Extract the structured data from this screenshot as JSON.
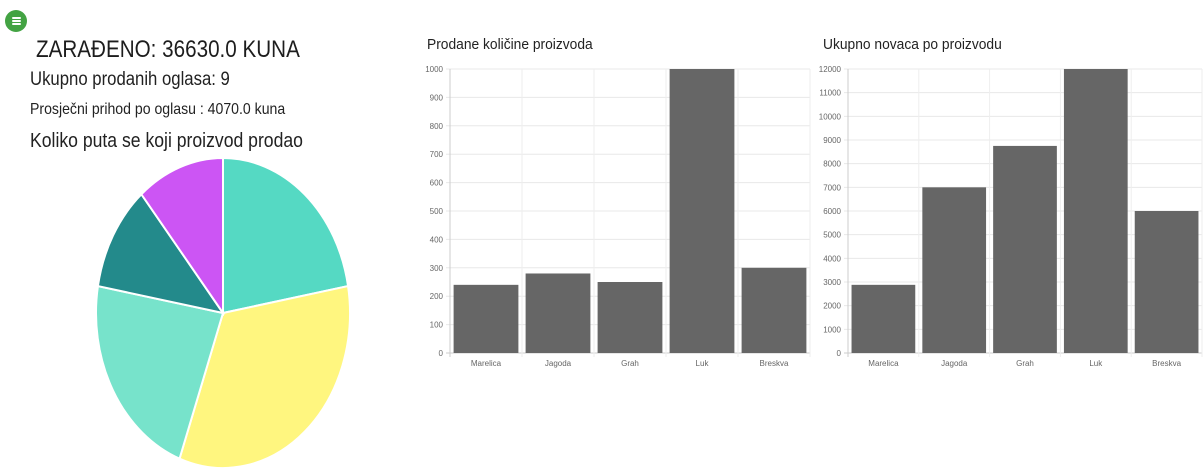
{
  "menu": {
    "icon": "hamburger-icon",
    "color": "#43a343"
  },
  "stats": {
    "earned": "ZARAĐENO: 36630.0 KUNA",
    "total_ads": "Ukupno prodanih oglasa: 9",
    "avg_income": "Prosječni prihod po oglasu : 4070.0 kuna",
    "pie_title": "Koliko puta se koji proizvod prodao"
  },
  "chart_data": [
    {
      "type": "pie",
      "title": "Koliko puta se koji proizvod prodao",
      "values": [
        2,
        3,
        2,
        1,
        1
      ],
      "colors": [
        "#55d9c3",
        "#fff67f",
        "#77e3cb",
        "#238a8b",
        "#cc55f4"
      ]
    },
    {
      "type": "bar",
      "title": "Prodane količine proizvoda",
      "categories": [
        "Marelica",
        "Jagoda",
        "Grah",
        "Luk",
        "Breskva"
      ],
      "values": [
        240,
        280,
        250,
        1000,
        300
      ],
      "ylim": [
        0,
        1000
      ],
      "yticks": [
        0,
        100,
        200,
        300,
        400,
        500,
        600,
        700,
        800,
        900,
        1000
      ],
      "grid": true,
      "color": "#666666"
    },
    {
      "type": "bar",
      "title": "Ukupno novaca po proizvodu",
      "categories": [
        "Marelica",
        "Jagoda",
        "Grah",
        "Luk",
        "Breskva"
      ],
      "values": [
        2880,
        7000,
        8750,
        12000,
        6000
      ],
      "ylim": [
        0,
        12000
      ],
      "yticks": [
        0,
        1000,
        2000,
        3000,
        4000,
        5000,
        6000,
        7000,
        8000,
        9000,
        10000,
        11000,
        12000
      ],
      "grid": true,
      "color": "#666666"
    }
  ]
}
